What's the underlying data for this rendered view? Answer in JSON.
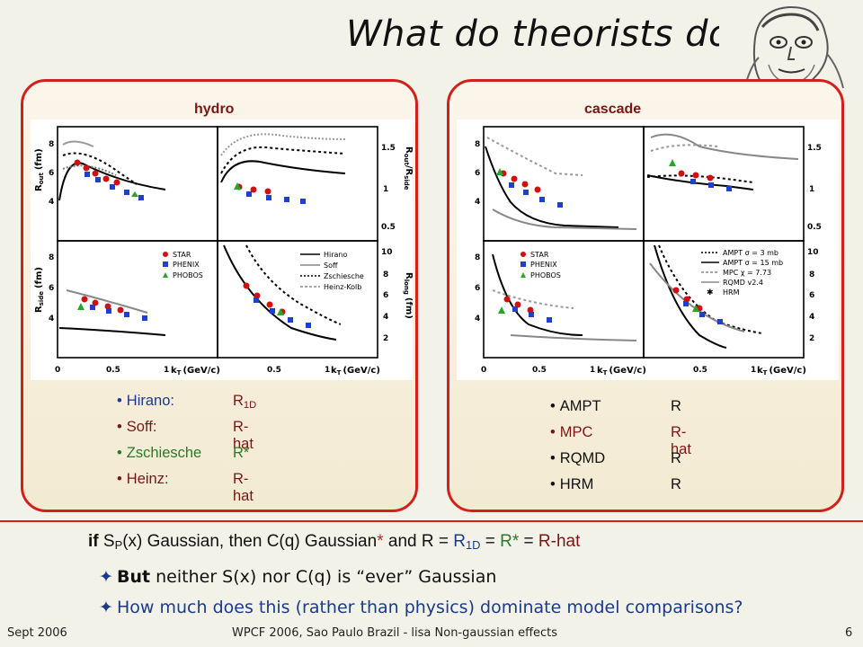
{
  "title": "What do theorists do?",
  "left_panel": {
    "heading": "hydro",
    "plot_labels": {
      "x_ticks": [
        "0",
        "0.5",
        "1",
        "0.5",
        "1"
      ],
      "x_title": "k",
      "x_title_sub": "T",
      "x_unit": "(GeV/c)",
      "y_ticks_top": [
        "8",
        "6",
        "4"
      ],
      "y_ticks_bottom": [
        "8",
        "6",
        "4"
      ],
      "y_ticks_ratio": [
        "1.5",
        "1",
        "0.5"
      ],
      "y_ticks_long": [
        "10",
        "8",
        "6",
        "4",
        "2"
      ],
      "y_label_out": "R",
      "y_label_out_sub": "out",
      "y_label_side": "R",
      "y_label_side_sub": "side",
      "y_label_ratio": "R",
      "y_label_ratio_sub": "out",
      "y_label_ratio_den": "/R",
      "y_label_ratio_den_sub": "side",
      "y_label_long": "R",
      "y_label_long_sub": "long",
      "unit_fm": "(fm)",
      "exp_legend": [
        "STAR",
        "PHENIX",
        "PHOBOS"
      ],
      "model_legend": [
        "Hirano",
        "Soff",
        "Zschiesche",
        "Heinz-Kolb"
      ]
    },
    "models": [
      {
        "name": "Hirano:",
        "value": "R",
        "value_sub": "1D"
      },
      {
        "name": "Soff:",
        "value": "R-hat",
        "value_sub": ""
      },
      {
        "name": "Zschiesche",
        "value": "R*",
        "value_sub": ""
      },
      {
        "name": "Heinz:",
        "value": "R-hat",
        "value_sub": ""
      }
    ]
  },
  "right_panel": {
    "heading": "cascade",
    "plot_labels": {
      "x_ticks": [
        "0",
        "0.5",
        "1",
        "0.5",
        "1"
      ],
      "x_title": "k",
      "x_title_sub": "T",
      "x_unit": "(GeV/c)",
      "y_ticks_top": [
        "8",
        "6",
        "4"
      ],
      "y_ticks_bottom": [
        "8",
        "6",
        "4"
      ],
      "y_ticks_ratio": [
        "1.5",
        "1",
        "0.5"
      ],
      "y_ticks_long": [
        "10",
        "8",
        "6",
        "4",
        "2"
      ],
      "exp_legend": [
        "STAR",
        "PHENIX",
        "PHOBOS"
      ],
      "model_legend": [
        "AMPT σ = 3 mb",
        "AMPT σ = 15 mb",
        "MPC χ = 7.73",
        "RQMD v2.4",
        "HRM"
      ]
    },
    "models": [
      {
        "name": "AMPT",
        "value": "R"
      },
      {
        "name": "MPC",
        "value": "R-hat"
      },
      {
        "name": "RQMD",
        "value": "R"
      },
      {
        "name": "HRM",
        "value": "R"
      }
    ]
  },
  "statement": {
    "if": "if",
    "s_p": "S",
    "s_p_sub": "P",
    "part1": "(x) Gaussian, then C(q) Gaussian",
    "star": "*",
    "part2": " and R = ",
    "r1d": "R",
    "r1d_sub": "1D",
    "eq": " = ",
    "rstar": "R*",
    "eq2": " = ",
    "rhat": "R-hat"
  },
  "points": [
    {
      "bold": "But",
      "text": " neither S(x) nor C(q) is “ever” Gaussian"
    },
    {
      "bold": "",
      "text": "How much does this (rather than physics) dominate model comparisons?"
    }
  ],
  "footer": {
    "date": "Sept 2006",
    "center": "WPCF 2006, Sao Paulo Brazil - lisa Non-gaussian effects",
    "page": "6"
  },
  "colors": {
    "accent_red": "#d2201b",
    "dark_red": "#7a1515",
    "blue_text": "#1a3a8a",
    "green_text": "#2a7a2a"
  }
}
